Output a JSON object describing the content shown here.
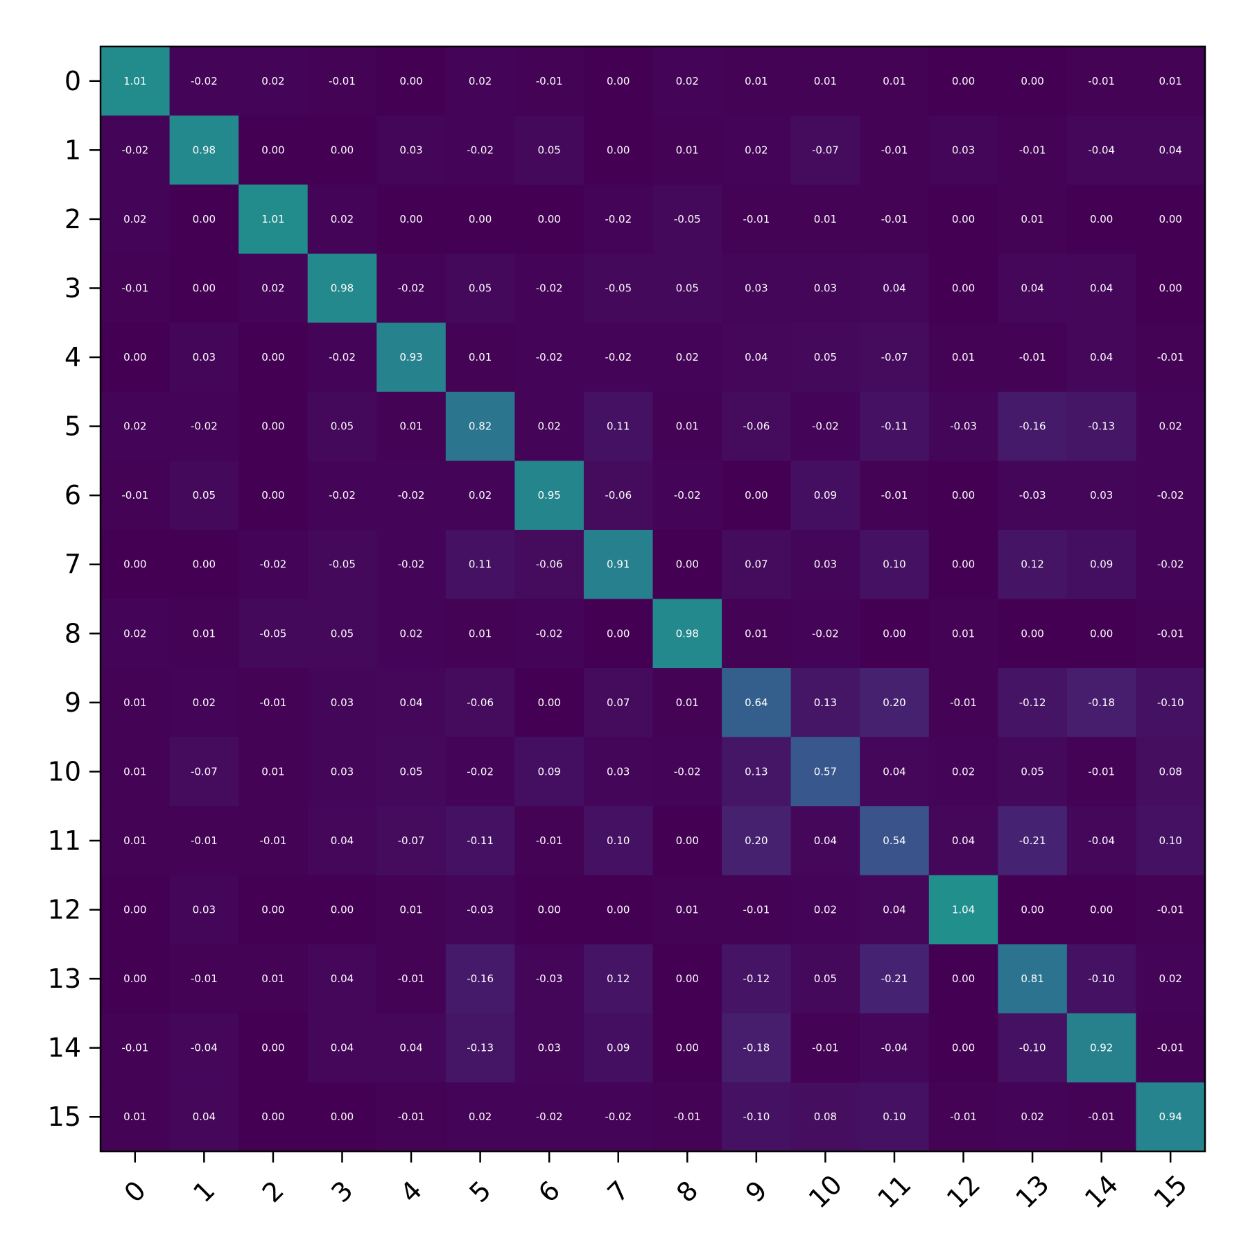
{
  "chart_data": {
    "type": "heatmap",
    "title": "",
    "xlabel": "",
    "ylabel": "",
    "x_categories": [
      "0",
      "1",
      "2",
      "3",
      "4",
      "5",
      "6",
      "7",
      "8",
      "9",
      "10",
      "11",
      "12",
      "13",
      "14",
      "15"
    ],
    "y_categories": [
      "0",
      "1",
      "2",
      "3",
      "4",
      "5",
      "6",
      "7",
      "8",
      "9",
      "10",
      "11",
      "12",
      "13",
      "14",
      "15"
    ],
    "colormap": "viridis",
    "value_range": [
      -1.04,
      1.04
    ],
    "colorbar": false,
    "cell_text_color": "#ffffff",
    "x_tick_rotation_deg": -45,
    "values": [
      [
        1.01,
        -0.02,
        0.02,
        -0.01,
        -0.0,
        0.02,
        -0.01,
        0.0,
        0.02,
        0.01,
        0.01,
        0.01,
        -0.0,
        -0.0,
        -0.01,
        0.01
      ],
      [
        -0.02,
        0.98,
        -0.0,
        -0.0,
        0.03,
        -0.02,
        0.05,
        0.0,
        0.01,
        0.02,
        -0.07,
        -0.01,
        0.03,
        -0.01,
        -0.04,
        0.04
      ],
      [
        0.02,
        -0.0,
        1.01,
        0.02,
        -0.0,
        0.0,
        -0.0,
        -0.02,
        -0.05,
        -0.01,
        0.01,
        -0.01,
        -0.0,
        0.01,
        0.0,
        -0.0
      ],
      [
        -0.01,
        -0.0,
        0.02,
        0.98,
        -0.02,
        0.05,
        -0.02,
        -0.05,
        0.05,
        0.03,
        0.03,
        0.04,
        -0.0,
        0.04,
        0.04,
        0.0
      ],
      [
        -0.0,
        0.03,
        -0.0,
        -0.02,
        0.93,
        0.01,
        -0.02,
        -0.02,
        0.02,
        0.04,
        0.05,
        -0.07,
        0.01,
        -0.01,
        0.04,
        -0.01
      ],
      [
        0.02,
        -0.02,
        0.0,
        0.05,
        0.01,
        0.82,
        0.02,
        0.11,
        0.01,
        -0.06,
        -0.02,
        -0.11,
        -0.03,
        -0.16,
        -0.13,
        0.02
      ],
      [
        -0.01,
        0.05,
        -0.0,
        -0.02,
        -0.02,
        0.02,
        0.95,
        -0.06,
        -0.02,
        0.0,
        0.09,
        -0.01,
        -0.0,
        -0.03,
        0.03,
        -0.02
      ],
      [
        0.0,
        0.0,
        -0.02,
        -0.05,
        -0.02,
        0.11,
        -0.06,
        0.91,
        -0.0,
        0.07,
        0.03,
        0.1,
        -0.0,
        0.12,
        0.09,
        -0.02
      ],
      [
        0.02,
        0.01,
        -0.05,
        0.05,
        0.02,
        0.01,
        -0.02,
        -0.0,
        0.98,
        0.01,
        -0.02,
        -0.0,
        0.01,
        -0.0,
        -0.0,
        -0.01
      ],
      [
        0.01,
        0.02,
        -0.01,
        0.03,
        0.04,
        -0.06,
        0.0,
        0.07,
        0.01,
        0.64,
        0.13,
        0.2,
        -0.01,
        -0.12,
        -0.18,
        -0.1
      ],
      [
        0.01,
        -0.07,
        0.01,
        0.03,
        0.05,
        -0.02,
        0.09,
        0.03,
        -0.02,
        0.13,
        0.57,
        0.04,
        0.02,
        0.05,
        -0.01,
        0.08
      ],
      [
        0.01,
        -0.01,
        -0.01,
        0.04,
        -0.07,
        -0.11,
        -0.01,
        0.1,
        -0.0,
        0.2,
        0.04,
        0.54,
        0.04,
        -0.21,
        -0.04,
        0.1
      ],
      [
        -0.0,
        0.03,
        -0.0,
        -0.0,
        0.01,
        -0.03,
        -0.0,
        -0.0,
        0.01,
        -0.01,
        0.02,
        0.04,
        1.04,
        -0.0,
        -0.0,
        -0.01
      ],
      [
        -0.0,
        -0.01,
        0.01,
        0.04,
        -0.01,
        -0.16,
        -0.03,
        0.12,
        -0.0,
        -0.12,
        0.05,
        -0.21,
        -0.0,
        0.81,
        -0.1,
        0.02
      ],
      [
        -0.01,
        -0.04,
        0.0,
        0.04,
        0.04,
        -0.13,
        0.03,
        0.09,
        -0.0,
        -0.18,
        -0.01,
        -0.04,
        -0.0,
        -0.1,
        0.92,
        -0.01
      ],
      [
        0.01,
        0.04,
        -0.0,
        0.0,
        -0.01,
        0.02,
        -0.02,
        -0.02,
        -0.01,
        -0.1,
        0.08,
        0.1,
        -0.01,
        0.02,
        -0.01,
        0.94
      ]
    ]
  }
}
